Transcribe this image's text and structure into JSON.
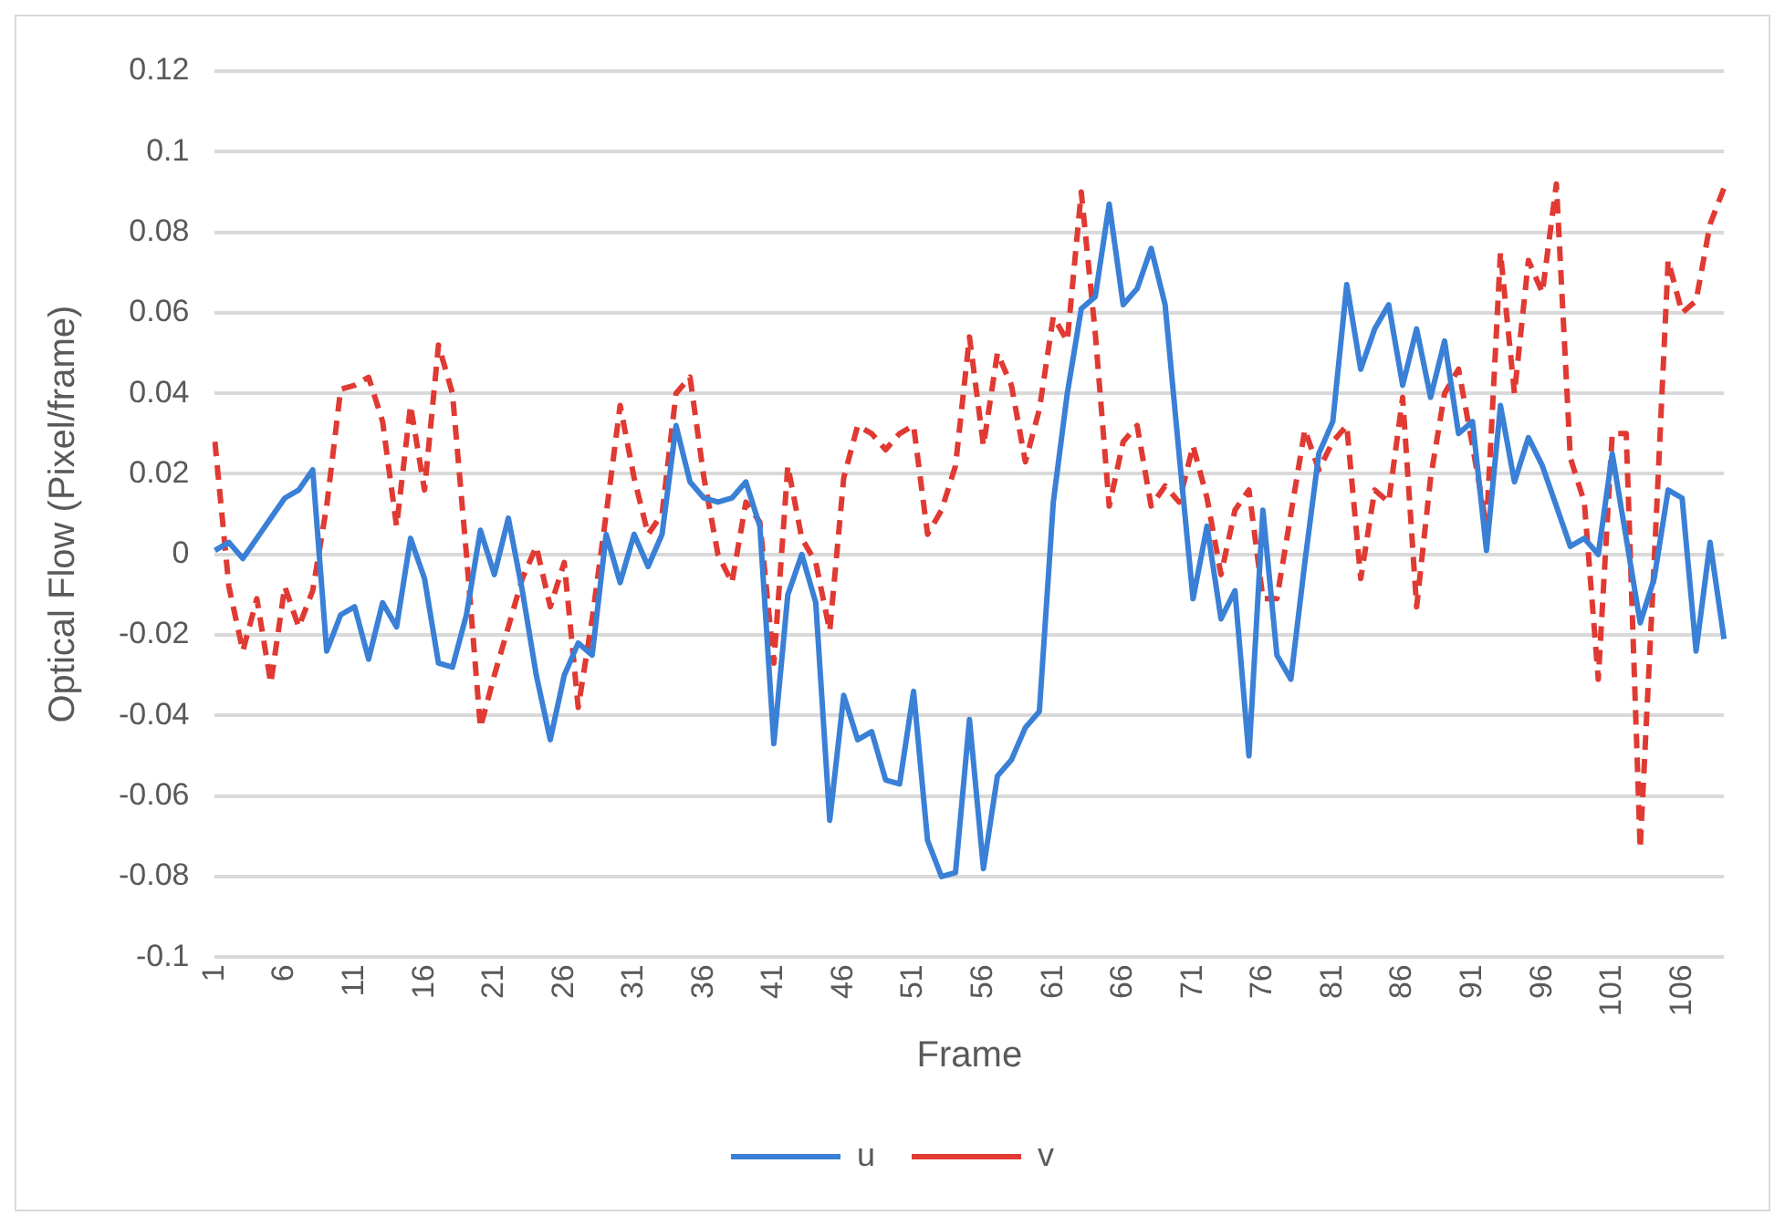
{
  "chart_data": {
    "type": "line",
    "xlabel": "Frame",
    "ylabel": "Optical Flow (Pixel/frame)",
    "categories": [
      "1",
      null,
      null,
      null,
      null,
      "6",
      null,
      null,
      null,
      null,
      "11",
      null,
      null,
      null,
      null,
      "16",
      null,
      null,
      null,
      null,
      "21",
      null,
      null,
      null,
      null,
      "26",
      null,
      null,
      null,
      null,
      "31",
      null,
      null,
      null,
      null,
      "36",
      null,
      null,
      null,
      null,
      "41",
      null,
      null,
      null,
      null,
      "46",
      null,
      null,
      null,
      null,
      "51",
      null,
      null,
      null,
      null,
      "56",
      null,
      null,
      null,
      null,
      "61",
      null,
      null,
      null,
      null,
      "66",
      null,
      null,
      null,
      null,
      "71",
      null,
      null,
      null,
      null,
      "76",
      null,
      null,
      null,
      null,
      "81",
      null,
      null,
      null,
      null,
      "86",
      null,
      null,
      null,
      null,
      "91",
      null,
      null,
      null,
      null,
      "96",
      null,
      null,
      null,
      null,
      "101",
      null,
      null,
      null,
      null,
      "106",
      null,
      null,
      null
    ],
    "series": [
      {
        "name": "u",
        "color": "#3a80d6",
        "line_style": "solid",
        "values": [
          0.001,
          0.003,
          -0.001,
          0.004,
          0.009,
          0.014,
          0.016,
          0.021,
          -0.024,
          -0.015,
          -0.013,
          -0.026,
          -0.012,
          -0.018,
          0.004,
          -0.006,
          -0.027,
          -0.028,
          -0.015,
          0.006,
          -0.005,
          0.009,
          -0.009,
          -0.03,
          -0.046,
          -0.03,
          -0.022,
          -0.025,
          0.005,
          -0.007,
          0.005,
          -0.003,
          0.005,
          0.032,
          0.018,
          0.014,
          0.013,
          0.014,
          0.018,
          0.007,
          -0.047,
          -0.01,
          0.0,
          -0.012,
          -0.066,
          -0.035,
          -0.046,
          -0.044,
          -0.056,
          -0.057,
          -0.034,
          -0.071,
          -0.08,
          -0.079,
          -0.041,
          -0.078,
          -0.055,
          -0.051,
          -0.043,
          -0.039,
          0.013,
          0.04,
          0.061,
          0.064,
          0.087,
          0.062,
          0.066,
          0.076,
          0.062,
          0.025,
          -0.011,
          0.007,
          -0.016,
          -0.009,
          -0.05,
          0.011,
          -0.025,
          -0.031,
          -0.002,
          0.025,
          0.033,
          0.067,
          0.046,
          0.056,
          0.062,
          0.042,
          0.056,
          0.039,
          0.053,
          0.03,
          0.033,
          0.001,
          0.037,
          0.018,
          0.029,
          0.022,
          0.012,
          0.002,
          0.004,
          0.0,
          0.025,
          0.004,
          -0.017,
          -0.006,
          0.016,
          0.014,
          -0.024,
          0.003,
          -0.021
        ]
      },
      {
        "name": "v",
        "color": "#e03a33",
        "line_style": "dashed",
        "values": [
          0.028,
          -0.008,
          -0.024,
          -0.011,
          -0.032,
          -0.008,
          -0.018,
          -0.009,
          0.012,
          0.041,
          0.042,
          0.044,
          0.033,
          0.007,
          0.037,
          0.016,
          0.052,
          0.04,
          0.0,
          -0.043,
          -0.03,
          -0.018,
          -0.006,
          0.002,
          -0.013,
          -0.002,
          -0.038,
          -0.016,
          0.01,
          0.037,
          0.019,
          0.005,
          0.01,
          0.04,
          0.044,
          0.019,
          0.0,
          -0.007,
          0.013,
          0.008,
          -0.027,
          0.022,
          0.004,
          -0.002,
          -0.019,
          0.019,
          0.032,
          0.03,
          0.026,
          0.03,
          0.032,
          0.005,
          0.011,
          0.022,
          0.054,
          0.027,
          0.05,
          0.042,
          0.023,
          0.036,
          0.059,
          0.053,
          0.09,
          0.055,
          0.012,
          0.028,
          0.032,
          0.012,
          0.017,
          0.013,
          0.027,
          0.014,
          -0.005,
          0.011,
          0.016,
          -0.011,
          -0.011,
          0.01,
          0.031,
          0.021,
          0.028,
          0.032,
          -0.006,
          0.016,
          0.013,
          0.039,
          -0.013,
          0.019,
          0.04,
          0.046,
          0.027,
          0.007,
          0.075,
          0.04,
          0.073,
          0.065,
          0.092,
          0.024,
          0.013,
          -0.031,
          0.03,
          0.03,
          -0.073,
          -0.002,
          0.073,
          0.06,
          0.063,
          0.082,
          0.091
        ]
      }
    ],
    "ylim": [
      -0.1,
      0.12
    ],
    "yticks": [
      -0.1,
      -0.08,
      -0.06,
      -0.04,
      -0.02,
      0,
      0.02,
      0.04,
      0.06,
      0.08,
      0.1,
      0.12
    ],
    "grid": "y",
    "legend": "bottom",
    "marker": "none"
  }
}
